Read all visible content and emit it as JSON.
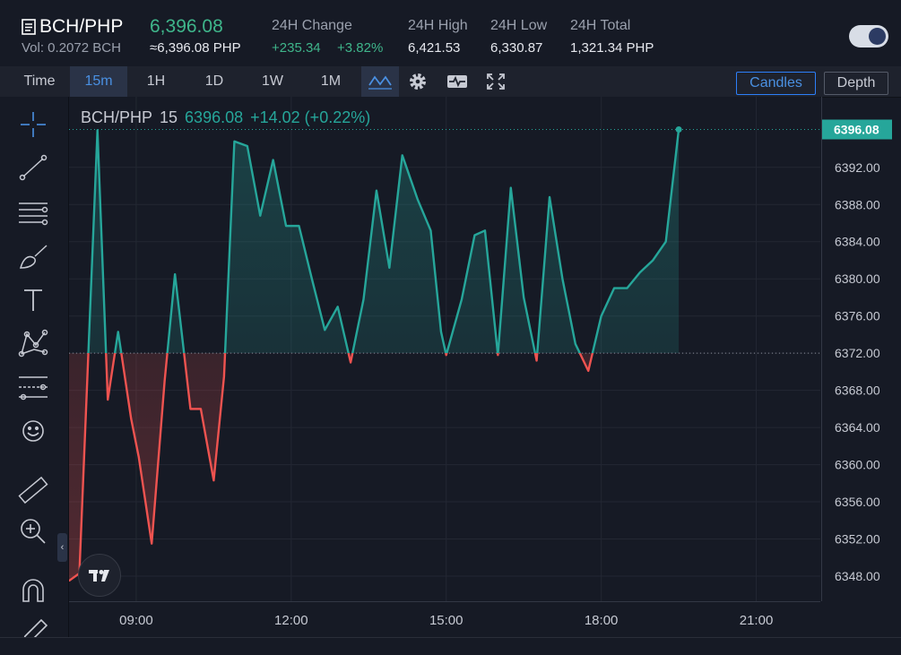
{
  "header": {
    "pair": "BCH/PHP",
    "last_price": "6,396.08",
    "volume": "Vol: 0.2072 BCH",
    "approx": "≈6,396.08 PHP",
    "stats": [
      {
        "label": "24H Change",
        "value_a": "+235.34",
        "value_b": "+3.82%"
      },
      {
        "label": "24H High",
        "value": "6,421.53"
      },
      {
        "label": "24H Low",
        "value": "6,330.87"
      },
      {
        "label": "24H Total",
        "value": "1,321.34 PHP"
      }
    ]
  },
  "toolbar": {
    "intervals": [
      "Time",
      "15m",
      "1H",
      "1D",
      "1W",
      "1M"
    ],
    "active_interval": "15m",
    "icons": [
      "line-style-icon",
      "gear-icon",
      "indicator-icon",
      "fullscreen-icon"
    ],
    "view_buttons": [
      "Candles",
      "Depth"
    ],
    "active_view": "Candles"
  },
  "left_tools": [
    "crosshair-icon",
    "trend-line-icon",
    "horizontal-lines-icon",
    "brush-icon",
    "text-icon",
    "pattern-icon",
    "measure-lines-icon",
    "emoji-icon",
    "ruler-icon",
    "zoom-in-icon",
    "magnet-icon",
    "pencil-icon"
  ],
  "legend": {
    "symbol": "BCH/PHP",
    "interval": "15",
    "value": "6396.08",
    "change": "+14.02 (+0.22%)"
  },
  "chart_data": {
    "type": "area",
    "baseline": 6372,
    "y_ticks": [
      "6392.00",
      "6388.00",
      "6384.00",
      "6380.00",
      "6376.00",
      "6372.00",
      "6368.00",
      "6364.00",
      "6360.00",
      "6356.00",
      "6352.00",
      "6348.00"
    ],
    "ylim": [
      6345.3,
      6399.6
    ],
    "x_ticks": [
      "09:00",
      "12:00",
      "15:00",
      "18:00",
      "21:00"
    ],
    "xlim": [
      7.7,
      22.24
    ],
    "last_label": "6396.08",
    "colors": {
      "up": "#26a69a",
      "down": "#ef5350"
    },
    "x": [
      7.7,
      7.9,
      8.25,
      8.45,
      8.65,
      8.9,
      9.05,
      9.3,
      9.55,
      9.75,
      10.05,
      10.25,
      10.5,
      10.7,
      10.9,
      11.15,
      11.4,
      11.65,
      11.9,
      12.15,
      12.4,
      12.65,
      12.9,
      13.15,
      13.4,
      13.65,
      13.9,
      14.15,
      14.45,
      14.7,
      14.9,
      15.0,
      15.3,
      15.55,
      15.75,
      16.0,
      16.25,
      16.5,
      16.75,
      17.0,
      17.25,
      17.5,
      17.75,
      18.0,
      18.25,
      18.5,
      18.75,
      19.0,
      19.25,
      19.5
    ],
    "y": [
      6347.5,
      6348.3,
      6396.0,
      6367.0,
      6374.3,
      6365.0,
      6360.8,
      6351.5,
      6369.0,
      6380.5,
      6366.0,
      6366.0,
      6358.3,
      6369.5,
      6394.8,
      6394.3,
      6386.8,
      6392.8,
      6385.7,
      6385.7,
      6380.0,
      6374.5,
      6377.0,
      6371.0,
      6377.8,
      6389.5,
      6381.2,
      6393.3,
      6388.5,
      6385.2,
      6374.3,
      6371.8,
      6377.8,
      6384.7,
      6385.2,
      6371.8,
      6389.8,
      6378.0,
      6371.2,
      6388.8,
      6380.0,
      6373.0,
      6370.1,
      6376.0,
      6379.0,
      6379.0,
      6380.7,
      6382.0,
      6384.0,
      6396.08
    ]
  }
}
